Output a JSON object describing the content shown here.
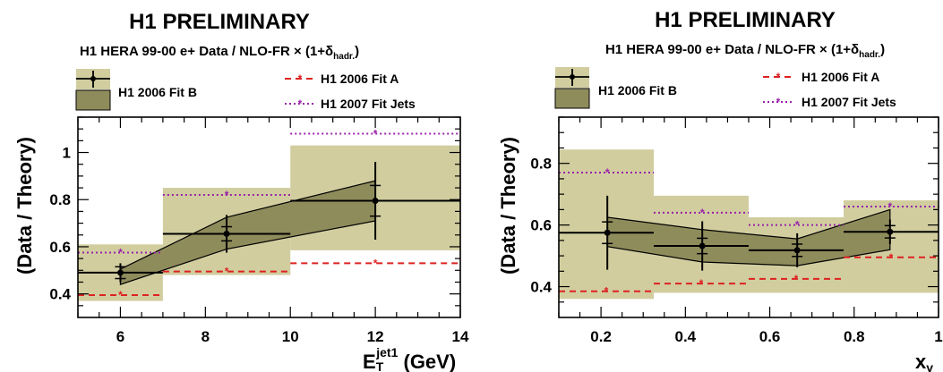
{
  "chart_data": [
    {
      "type": "line",
      "title": "H1 PRELIMINARY",
      "subtitle": "H1 HERA 99-00 e+ Data / NLO-FR × (1+δ",
      "subtitle_sub": "hadr.",
      "subtitle_end": ")",
      "ylabel": "(Data / Theory)",
      "xlabel": "E",
      "xlabel_sub": "T",
      "xlabel_sup": "jet1",
      "xlabel_unit": " (GeV)",
      "xlim": [
        5,
        14
      ],
      "ylim": [
        0.3,
        1.15
      ],
      "xticks": [
        6,
        8,
        10,
        12,
        14
      ],
      "yticks": [
        0.4,
        0.6,
        0.8,
        1
      ],
      "legend": {
        "data": "",
        "fitB": "H1 2006 Fit B",
        "fitA": "H1 2006 Fit A",
        "jets": "H1 2007 Fit Jets"
      },
      "bins": [
        [
          5,
          7
        ],
        [
          7,
          10
        ],
        [
          10,
          14
        ]
      ],
      "data_points": [
        {
          "x": 6.0,
          "y": 0.49,
          "stat": 0.025,
          "tot": 0.04
        },
        {
          "x": 8.5,
          "y": 0.655,
          "stat": 0.03,
          "tot": 0.08
        },
        {
          "x": 12.0,
          "y": 0.795,
          "stat": 0.065,
          "tot": 0.165
        }
      ],
      "fit_B_band": {
        "x": [
          6.0,
          8.5,
          12.0
        ],
        "low": [
          0.44,
          0.59,
          0.71
        ],
        "high": [
          0.505,
          0.725,
          0.88
        ]
      },
      "outer_band": [
        {
          "x": [
            5,
            7
          ],
          "low": 0.37,
          "high": 0.61
        },
        {
          "x": [
            7,
            10
          ],
          "low": 0.48,
          "high": 0.85
        },
        {
          "x": [
            10,
            14
          ],
          "low": 0.585,
          "high": 1.03
        }
      ],
      "fit_A": [
        0.395,
        0.495,
        0.53
      ],
      "fit_jets": [
        0.575,
        0.82,
        1.08
      ],
      "colors": {
        "band": "#d1cd9f",
        "fitB": "#8f8c5c",
        "fitA": "#dd2222",
        "jets": "#9922aa",
        "data": "#000000"
      }
    },
    {
      "type": "line",
      "title": "H1 PRELIMINARY",
      "subtitle": "H1 HERA 99-00 e+ Data / NLO-FR × (1+δ",
      "subtitle_sub": "hadr.",
      "subtitle_end": ")",
      "ylabel": "(Data / Theory)",
      "xlabel": "x",
      "xlabel_sub": "γ",
      "xlabel_sup": "",
      "xlabel_unit": "",
      "xlim": [
        0.1,
        1.0
      ],
      "ylim": [
        0.3,
        0.95
      ],
      "xticks": [
        0.2,
        0.4,
        0.6,
        0.8,
        1
      ],
      "yticks": [
        0.4,
        0.6,
        0.8
      ],
      "legend": {
        "data": "",
        "fitB": "H1 2006 Fit B",
        "fitA": "H1 2006 Fit A",
        "jets": "H1 2007 Fit Jets"
      },
      "bins": [
        [
          0.1,
          0.325
        ],
        [
          0.325,
          0.55
        ],
        [
          0.55,
          0.775
        ],
        [
          0.775,
          1.0
        ]
      ],
      "data_points": [
        {
          "x": 0.215,
          "y": 0.575,
          "stat": 0.035,
          "tot": 0.12
        },
        {
          "x": 0.44,
          "y": 0.532,
          "stat": 0.025,
          "tot": 0.08
        },
        {
          "x": 0.665,
          "y": 0.518,
          "stat": 0.02,
          "tot": 0.055
        },
        {
          "x": 0.885,
          "y": 0.578,
          "stat": 0.02,
          "tot": 0.04
        }
      ],
      "fit_B_band": {
        "x": [
          0.215,
          0.44,
          0.665,
          0.885
        ],
        "low": [
          0.53,
          0.48,
          0.468,
          0.52
        ],
        "high": [
          0.625,
          0.585,
          0.555,
          0.65
        ]
      },
      "outer_band": [
        {
          "x": [
            0.1,
            0.325
          ],
          "low": 0.36,
          "high": 0.845
        },
        {
          "x": [
            0.325,
            0.55
          ],
          "low": 0.38,
          "high": 0.695
        },
        {
          "x": [
            0.55,
            0.775
          ],
          "low": 0.38,
          "high": 0.625
        },
        {
          "x": [
            0.775,
            1.0
          ],
          "low": 0.38,
          "high": 0.68
        }
      ],
      "fit_A": [
        0.385,
        0.41,
        0.425,
        0.495
      ],
      "fit_jets": [
        0.77,
        0.64,
        0.6,
        0.66
      ],
      "colors": {
        "band": "#d1cd9f",
        "fitB": "#8f8c5c",
        "fitA": "#dd2222",
        "jets": "#9922aa",
        "data": "#000000"
      }
    }
  ]
}
